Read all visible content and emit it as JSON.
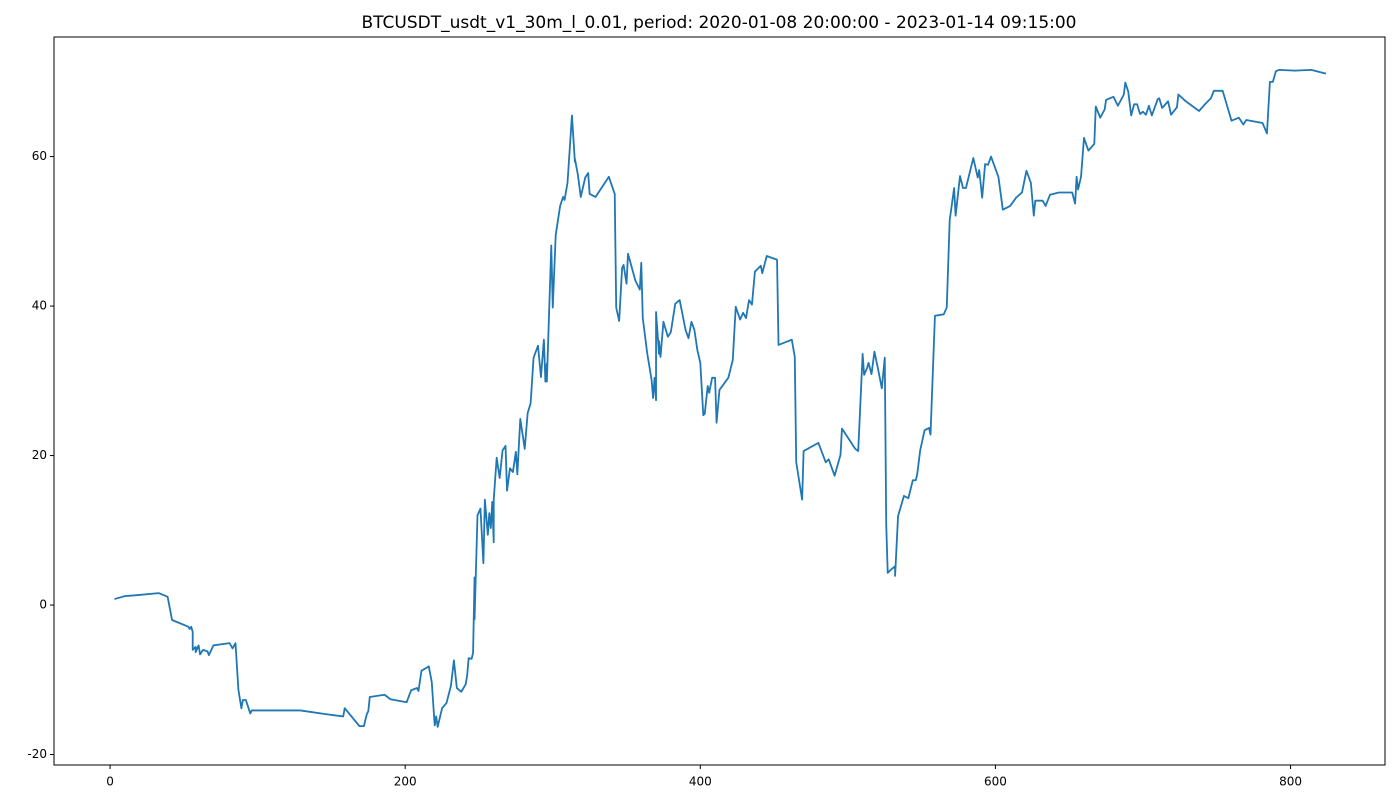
{
  "chart_data": {
    "type": "line",
    "title": "BTCUSDT_usdt_v1_30m_l_0.01, period: 2020-01-08 20:00:00 - 2023-01-14 09:15:00",
    "color": "#1f77b4",
    "xlim": [
      -38,
      864
    ],
    "ylim": [
      -21.4,
      76
    ],
    "xticks": [
      0,
      200,
      400,
      600,
      800
    ],
    "yticks": [
      -20,
      0,
      20,
      40,
      60
    ],
    "x": [
      3,
      10,
      17,
      33,
      39,
      42,
      53,
      54,
      55,
      56,
      56,
      58,
      58,
      60,
      61,
      63,
      66,
      67,
      70,
      81,
      83,
      85,
      87,
      89,
      90,
      92,
      95,
      96,
      129,
      146,
      158,
      159,
      169,
      172,
      174,
      175,
      176,
      186,
      190,
      201,
      204,
      208,
      209,
      211,
      216,
      218,
      220,
      221,
      222,
      225,
      228,
      231,
      233,
      235,
      238,
      241,
      242,
      243,
      245,
      246,
      247,
      247,
      249,
      251,
      253,
      254,
      256,
      257,
      258,
      259,
      260,
      260,
      262,
      264,
      266,
      268,
      269,
      271,
      273,
      275,
      276,
      278,
      281,
      283,
      285,
      287,
      290,
      292,
      294,
      295,
      296,
      296,
      299,
      300,
      302,
      305,
      307,
      308,
      310,
      313,
      315,
      315,
      317,
      319,
      322,
      324,
      325,
      329,
      338,
      342,
      343,
      345,
      347,
      348,
      350,
      351,
      356,
      359,
      360,
      361,
      364,
      367,
      368,
      369,
      370,
      370,
      372,
      372,
      373,
      375,
      378,
      380,
      383,
      386,
      390,
      392,
      394,
      396,
      398,
      400,
      402,
      403,
      405,
      406,
      408,
      410,
      411,
      413,
      419,
      422,
      424,
      427,
      429,
      431,
      433,
      435,
      437,
      441,
      442,
      445,
      452,
      453,
      462,
      464,
      465,
      469,
      470,
      480,
      485,
      487,
      491,
      495,
      496,
      500,
      505,
      507,
      510,
      511,
      513,
      514,
      516,
      518,
      520,
      523,
      525,
      526,
      527,
      529,
      532,
      532,
      534,
      538,
      541,
      544,
      546,
      547,
      549,
      552,
      555,
      556,
      559,
      565,
      567,
      569,
      572,
      573,
      576,
      578,
      580,
      585,
      588,
      589,
      591,
      593,
      595,
      597,
      602,
      605,
      610,
      614,
      618,
      621,
      624,
      626,
      627,
      632,
      634,
      637,
      643,
      652,
      654,
      655,
      656,
      658,
      660,
      663,
      667,
      668,
      671,
      674,
      675,
      680,
      683,
      687,
      688,
      690,
      692,
      694,
      696,
      698,
      700,
      702,
      704,
      706,
      710,
      711,
      713,
      717,
      719,
      723,
      724,
      729,
      738,
      742,
      746,
      748,
      754,
      760,
      765,
      768,
      770,
      781,
      784,
      786,
      788,
      790,
      792,
      803,
      814,
      824
    ],
    "values": [
      0.8,
      1.2,
      1.3,
      1.6,
      1.1,
      -2.0,
      -2.9,
      -3.2,
      -2.9,
      -3.6,
      -6.0,
      -5.6,
      -6.3,
      -5.4,
      -6.6,
      -6.0,
      -6.2,
      -6.7,
      -5.4,
      -5.1,
      -5.8,
      -5.1,
      -11.4,
      -13.8,
      -12.7,
      -12.7,
      -14.5,
      -14.1,
      -14.1,
      -14.6,
      -14.9,
      -13.8,
      -16.2,
      -16.2,
      -14.6,
      -14.2,
      -12.3,
      -12.0,
      -12.6,
      -13.0,
      -11.4,
      -11.1,
      -11.5,
      -8.8,
      -8.2,
      -10.3,
      -16.1,
      -14.9,
      -16.3,
      -13.8,
      -13.1,
      -10.8,
      -7.4,
      -11.1,
      -11.6,
      -10.6,
      -9.4,
      -7.1,
      -7.2,
      -6.4,
      3.7,
      -1.9,
      12.0,
      12.9,
      5.6,
      14.1,
      9.4,
      12.3,
      10.3,
      13.8,
      8.4,
      14.1,
      19.7,
      17.0,
      20.7,
      21.3,
      15.3,
      18.3,
      17.8,
      20.5,
      17.5,
      24.9,
      20.9,
      25.7,
      27.0,
      33.1,
      34.7,
      30.5,
      35.5,
      29.9,
      32.3,
      29.9,
      48.1,
      39.8,
      49.5,
      53.4,
      54.6,
      54.2,
      56.5,
      65.5,
      59.3,
      59.7,
      57.6,
      54.6,
      57.2,
      57.8,
      55.0,
      54.6,
      57.3,
      55.0,
      39.8,
      38.0,
      45.1,
      45.5,
      43.0,
      47.0,
      43.4,
      42.2,
      45.8,
      38.4,
      33.7,
      30.1,
      27.7,
      30.4,
      27.4,
      39.2,
      33.6,
      35.3,
      33.2,
      37.9,
      35.9,
      36.5,
      40.3,
      40.8,
      36.8,
      35.7,
      37.9,
      36.8,
      34.1,
      32.4,
      25.4,
      25.6,
      29.3,
      28.4,
      30.4,
      30.4,
      24.4,
      28.8,
      30.4,
      32.8,
      39.9,
      38.2,
      39.1,
      38.4,
      40.8,
      40.2,
      44.6,
      45.4,
      44.4,
      46.7,
      46.2,
      34.8,
      35.5,
      33.2,
      19.1,
      14.1,
      20.6,
      21.7,
      19.1,
      19.5,
      17.3,
      20.1,
      23.6,
      22.4,
      20.9,
      20.6,
      33.6,
      30.8,
      31.7,
      32.4,
      30.9,
      33.9,
      32.0,
      29.0,
      33.1,
      10.7,
      4.3,
      4.7,
      5.2,
      3.9,
      11.9,
      14.6,
      14.3,
      16.7,
      16.7,
      17.5,
      20.7,
      23.4,
      23.7,
      22.8,
      38.7,
      38.9,
      39.8,
      51.5,
      55.8,
      52.1,
      57.4,
      55.8,
      55.8,
      59.8,
      57.2,
      58.2,
      54.5,
      59.0,
      58.9,
      60.0,
      57.3,
      52.9,
      53.4,
      54.5,
      55.2,
      58.1,
      56.5,
      52.1,
      54.1,
      54.1,
      53.4,
      54.9,
      55.2,
      55.2,
      53.7,
      57.3,
      55.6,
      57.3,
      62.5,
      60.8,
      61.7,
      66.7,
      65.2,
      66.3,
      67.6,
      68.0,
      66.8,
      68.3,
      69.9,
      68.7,
      65.5,
      67.0,
      67.0,
      65.7,
      66.0,
      65.6,
      66.8,
      65.5,
      67.7,
      67.8,
      66.5,
      67.4,
      65.6,
      66.6,
      68.3,
      67.4,
      66.1,
      67.0,
      67.8,
      68.8,
      68.8,
      64.8,
      65.2,
      64.3,
      64.9,
      64.5,
      63.1,
      70.0,
      70.0,
      71.4,
      71.6,
      71.5,
      71.6,
      71.1
    ]
  }
}
